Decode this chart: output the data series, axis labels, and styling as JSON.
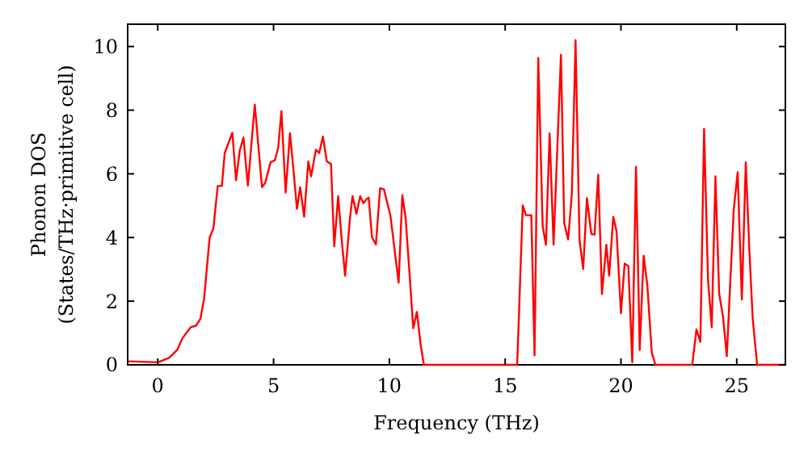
{
  "chart_data": {
    "type": "line",
    "xlabel": "Frequency (THz)",
    "ylabel": "Phonon DOS\n(States/THz·primitive cell)",
    "xlim": [
      -1.3,
      27.1
    ],
    "ylim": [
      0,
      10.7
    ],
    "xticks": [
      0,
      5,
      10,
      15,
      20,
      25
    ],
    "yticks": [
      0,
      2,
      4,
      6,
      8,
      10
    ],
    "grid": false,
    "marker": "none",
    "line_style": "solid",
    "series": [
      {
        "color": "#ff0000",
        "x": [
          -1.26,
          0,
          0.49,
          0.84,
          1.07,
          1.42,
          1.65,
          1.84,
          2.0,
          2.24,
          2.4,
          2.59,
          2.77,
          2.89,
          3.22,
          3.38,
          3.54,
          3.7,
          3.89,
          4.19,
          4.5,
          4.64,
          4.87,
          5.06,
          5.2,
          5.34,
          5.52,
          5.71,
          5.85,
          6.01,
          6.15,
          6.32,
          6.5,
          6.62,
          6.83,
          6.97,
          7.13,
          7.3,
          7.48,
          7.62,
          7.79,
          7.93,
          8.09,
          8.3,
          8.41,
          8.58,
          8.74,
          8.88,
          9.02,
          9.11,
          9.25,
          9.42,
          9.6,
          9.77,
          10.05,
          10.4,
          10.56,
          10.7,
          10.89,
          11.03,
          11.19,
          11.35,
          11.49,
          15.52,
          15.76,
          15.9,
          16.13,
          16.27,
          16.43,
          16.62,
          16.76,
          16.92,
          17.09,
          17.41,
          17.55,
          17.72,
          17.88,
          18.04,
          18.21,
          18.37,
          18.53,
          18.72,
          18.86,
          19.02,
          19.18,
          19.37,
          19.49,
          19.67,
          19.81,
          20.0,
          20.16,
          20.32,
          20.49,
          20.65,
          20.81,
          20.98,
          21.14,
          21.33,
          21.49,
          23.08,
          23.26,
          23.43,
          23.59,
          23.76,
          23.92,
          24.08,
          24.24,
          24.41,
          24.57,
          24.87,
          25.04,
          25.22,
          25.39,
          25.55,
          25.69,
          25.88,
          27.07
        ],
        "values": [
          0.11,
          0.08,
          0.22,
          0.47,
          0.84,
          1.18,
          1.23,
          1.44,
          2.08,
          4.0,
          4.28,
          5.62,
          5.62,
          6.65,
          7.29,
          5.8,
          6.73,
          7.14,
          5.63,
          8.17,
          5.58,
          5.72,
          6.36,
          6.43,
          6.82,
          7.97,
          5.41,
          7.28,
          6.19,
          4.9,
          5.58,
          4.65,
          6.39,
          5.92,
          6.76,
          6.65,
          7.17,
          6.39,
          6.31,
          3.72,
          5.3,
          4.03,
          2.8,
          4.62,
          5.3,
          4.74,
          5.3,
          5.08,
          5.21,
          5.25,
          4.0,
          3.78,
          5.55,
          5.51,
          4.67,
          2.58,
          5.33,
          4.62,
          2.67,
          1.15,
          1.66,
          0.64,
          0,
          0,
          5.01,
          4.7,
          4.7,
          0.3,
          9.64,
          4.36,
          3.77,
          7.27,
          3.77,
          9.74,
          4.45,
          3.94,
          5.38,
          10.2,
          3.94,
          3.01,
          5.24,
          4.11,
          4.09,
          5.97,
          2.22,
          3.77,
          2.8,
          4.65,
          4.19,
          1.62,
          3.18,
          3.1,
          0.08,
          6.22,
          0.47,
          3.43,
          2.5,
          0.39,
          0,
          0,
          1.11,
          0.72,
          7.41,
          2.67,
          1.18,
          5.92,
          2.25,
          1.49,
          0.27,
          4.87,
          6.05,
          2.05,
          6.36,
          3.52,
          1.45,
          0,
          0
        ]
      }
    ]
  }
}
